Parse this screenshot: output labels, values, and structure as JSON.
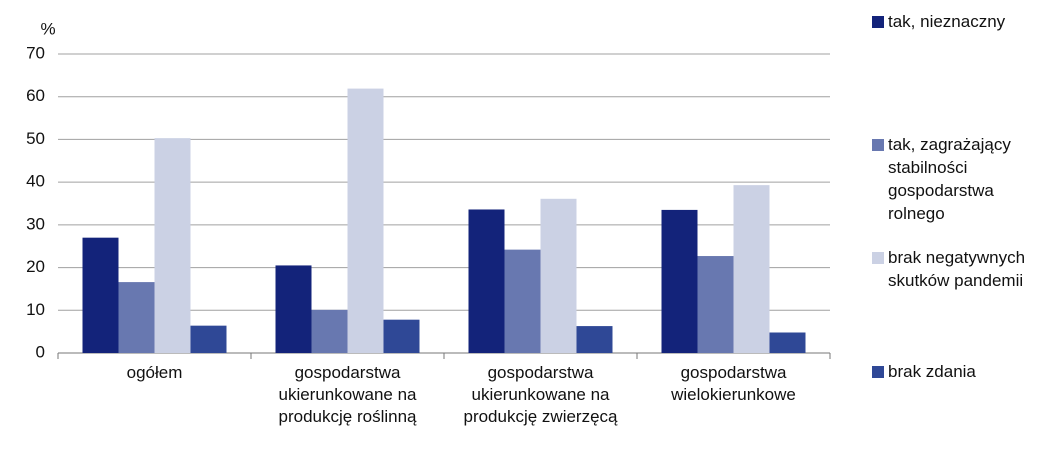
{
  "chart_data": {
    "type": "bar",
    "y_label": "%",
    "categories": [
      "ogółem",
      "gospodarstwa ukierunkowane na produkcję roślinną",
      "gospodarstwa ukierunkowane na produkcję zwierzęcą",
      "gospodarstwa wielokierunkowe"
    ],
    "series": [
      {
        "name": "tak, nieznaczny",
        "color": "#13237a",
        "values": [
          27,
          20.5,
          33.6,
          33.5
        ]
      },
      {
        "name": "tak, zagrażający stabilności gospodarstwa rolnego",
        "color": "#6878b0",
        "values": [
          16.6,
          10.1,
          24.2,
          22.7
        ]
      },
      {
        "name": "brak negatywnych skutków pandemii",
        "color": "#cbd1e4",
        "values": [
          50.3,
          61.9,
          36.1,
          39.3
        ]
      },
      {
        "name": "brak zdania",
        "color": "#2f4896",
        "values": [
          6.4,
          7.8,
          6.3,
          4.8
        ]
      }
    ],
    "ylim": [
      0,
      70
    ],
    "yticks": [
      0,
      10,
      20,
      30,
      40,
      50,
      60,
      70
    ],
    "grid": true,
    "legend": "right"
  }
}
